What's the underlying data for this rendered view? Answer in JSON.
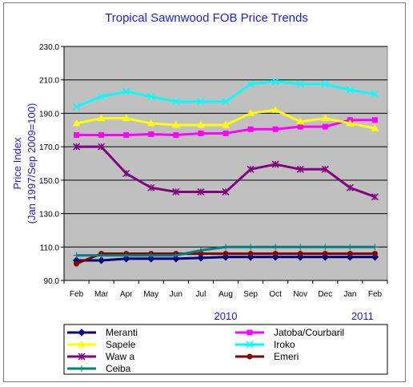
{
  "chart_data": {
    "type": "line",
    "title": "Tropical Sawnwood FOB Price Trends",
    "ylabel_lines": [
      "Price Index",
      "(Jan 1997/Sep 2009=100)"
    ],
    "ylim": [
      90,
      230
    ],
    "yticks": [
      "90.0",
      "110.0",
      "130.0",
      "150.0",
      "170.0",
      "190.0",
      "210.0",
      "230.0"
    ],
    "ytick_values": [
      90,
      110,
      130,
      150,
      170,
      190,
      210,
      230
    ],
    "categories": [
      "Feb",
      "Mar",
      "Apr",
      "May",
      "Jun",
      "Jul",
      "Aug",
      "Sep",
      "Oct",
      "Nov",
      "Dec",
      "Jan",
      "Feb"
    ],
    "year_labels": [
      {
        "text": "2010",
        "at_category": 6
      },
      {
        "text": "2011",
        "at_category": 11.5
      }
    ],
    "grid": true,
    "plot_background": "#c0c0c0",
    "legend_position": "bottom",
    "series": [
      {
        "name": "Meranti",
        "color": "#000080",
        "marker": "diamond",
        "values": [
          102,
          102,
          103,
          103,
          103,
          103.5,
          104,
          104,
          104,
          104,
          104,
          104,
          104
        ]
      },
      {
        "name": "Jatoba/Courbaril",
        "color": "#ff00ff",
        "marker": "square",
        "values": [
          177,
          177,
          177,
          177.5,
          177,
          178,
          178,
          180.5,
          180.5,
          182,
          182,
          186,
          186
        ]
      },
      {
        "name": "Sapele",
        "color": "#ffff00",
        "marker": "triangle",
        "values": [
          184,
          187,
          187,
          184,
          183,
          183,
          183,
          190,
          192,
          185,
          187,
          184,
          181
        ]
      },
      {
        "name": "Iroko",
        "color": "#00ffff",
        "marker": "x",
        "values": [
          194,
          200,
          203,
          200,
          197,
          197,
          197,
          207.5,
          209,
          207.5,
          207.5,
          204,
          201.5
        ]
      },
      {
        "name": "Wawa",
        "color": "#800080",
        "marker": "star",
        "values": [
          170,
          170,
          154,
          145.5,
          143,
          143,
          143,
          156.5,
          159.5,
          156.5,
          156.5,
          145.5,
          140
        ]
      },
      {
        "name": "Emeri",
        "color": "#800000",
        "marker": "circle",
        "values": [
          100,
          106,
          106,
          106,
          106,
          106,
          106,
          106,
          106,
          106,
          106,
          106,
          106
        ]
      },
      {
        "name": "Ceiba",
        "color": "#008080",
        "marker": "plus",
        "values": [
          105,
          105,
          105,
          105,
          105,
          108,
          110,
          110,
          110,
          110,
          110,
          110,
          110
        ]
      }
    ],
    "legend_labels": [
      "Meranti",
      "Jatoba/Courbaril",
      "Sapele",
      "Iroko",
      "Waw a",
      "Emeri",
      "Ceiba"
    ]
  }
}
